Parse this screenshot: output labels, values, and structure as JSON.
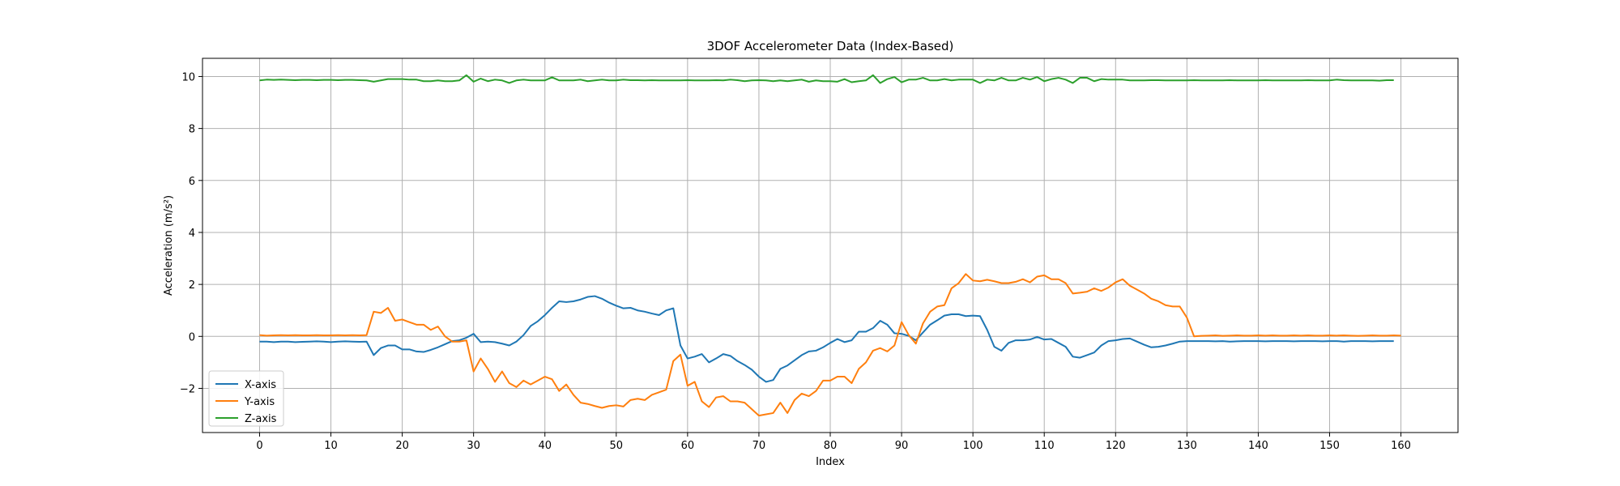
{
  "chart_data": {
    "type": "line",
    "title": "3DOF Accelerometer Data (Index-Based)",
    "xlabel": "Index",
    "ylabel": "Acceleration (m/s²)",
    "xlim": [
      -8,
      168
    ],
    "ylim": [
      -3.7,
      10.7
    ],
    "xticks": [
      0,
      10,
      20,
      30,
      40,
      50,
      60,
      70,
      80,
      90,
      100,
      110,
      120,
      130,
      140,
      150,
      160
    ],
    "yticks": [
      -2,
      0,
      2,
      4,
      6,
      8,
      10
    ],
    "grid": true,
    "legend_position": "lower-left",
    "x_start": 0,
    "x_step": 1,
    "series": [
      {
        "name": "X-axis",
        "color": "#1f77b4",
        "values": [
          -0.2,
          -0.2,
          -0.22,
          -0.2,
          -0.2,
          -0.22,
          -0.21,
          -0.2,
          -0.19,
          -0.2,
          -0.22,
          -0.2,
          -0.19,
          -0.2,
          -0.21,
          -0.2,
          -0.72,
          -0.45,
          -0.35,
          -0.35,
          -0.5,
          -0.5,
          -0.58,
          -0.6,
          -0.52,
          -0.42,
          -0.3,
          -0.18,
          -0.15,
          -0.05,
          0.1,
          -0.22,
          -0.2,
          -0.22,
          -0.28,
          -0.35,
          -0.2,
          0.05,
          0.4,
          0.58,
          0.82,
          1.1,
          1.35,
          1.32,
          1.35,
          1.42,
          1.52,
          1.55,
          1.45,
          1.3,
          1.18,
          1.08,
          1.1,
          1.0,
          0.95,
          0.88,
          0.82,
          1.0,
          1.08,
          -0.35,
          -0.85,
          -0.78,
          -0.68,
          -1.0,
          -0.85,
          -0.68,
          -0.75,
          -0.95,
          -1.1,
          -1.28,
          -1.55,
          -1.75,
          -1.68,
          -1.25,
          -1.12,
          -0.92,
          -0.72,
          -0.58,
          -0.55,
          -0.42,
          -0.25,
          -0.1,
          -0.22,
          -0.15,
          0.18,
          0.18,
          0.32,
          0.6,
          0.45,
          0.12,
          0.1,
          0.02,
          -0.15,
          0.15,
          0.45,
          0.62,
          0.8,
          0.85,
          0.85,
          0.78,
          0.8,
          0.78,
          0.25,
          -0.4,
          -0.55,
          -0.25,
          -0.15,
          -0.15,
          -0.12,
          -0.02,
          -0.12,
          -0.1,
          -0.25,
          -0.4,
          -0.78,
          -0.82,
          -0.72,
          -0.62,
          -0.35,
          -0.18,
          -0.15,
          -0.1,
          -0.08,
          -0.2,
          -0.32,
          -0.42,
          -0.4,
          -0.35,
          -0.28,
          -0.2,
          -0.18,
          -0.18,
          -0.18,
          -0.18,
          -0.19,
          -0.18,
          -0.2,
          -0.19,
          -0.18,
          -0.18,
          -0.18,
          -0.19,
          -0.18,
          -0.18,
          -0.18,
          -0.19,
          -0.18,
          -0.18,
          -0.18,
          -0.19,
          -0.18,
          -0.18,
          -0.2,
          -0.18,
          -0.18,
          -0.18,
          -0.19,
          -0.18,
          -0.18,
          -0.18
        ]
      },
      {
        "name": "Y-axis",
        "color": "#ff7f0e",
        "values": [
          0.05,
          0.03,
          0.04,
          0.05,
          0.04,
          0.05,
          0.04,
          0.04,
          0.05,
          0.04,
          0.04,
          0.05,
          0.04,
          0.05,
          0.04,
          0.05,
          0.95,
          0.9,
          1.1,
          0.6,
          0.65,
          0.55,
          0.45,
          0.45,
          0.25,
          0.38,
          0.0,
          -0.2,
          -0.2,
          -0.15,
          -1.35,
          -0.85,
          -1.25,
          -1.75,
          -1.35,
          -1.8,
          -1.95,
          -1.7,
          -1.85,
          -1.7,
          -1.55,
          -1.65,
          -2.1,
          -1.85,
          -2.25,
          -2.55,
          -2.6,
          -2.68,
          -2.75,
          -2.68,
          -2.65,
          -2.7,
          -2.45,
          -2.4,
          -2.45,
          -2.25,
          -2.15,
          -2.05,
          -0.95,
          -0.7,
          -1.9,
          -1.75,
          -2.5,
          -2.72,
          -2.35,
          -2.3,
          -2.5,
          -2.5,
          -2.55,
          -2.8,
          -3.05,
          -3.0,
          -2.95,
          -2.55,
          -2.95,
          -2.45,
          -2.2,
          -2.3,
          -2.1,
          -1.7,
          -1.7,
          -1.55,
          -1.55,
          -1.8,
          -1.25,
          -1.0,
          -0.55,
          -0.45,
          -0.58,
          -0.35,
          0.55,
          0.05,
          -0.28,
          0.5,
          0.95,
          1.15,
          1.2,
          1.85,
          2.05,
          2.4,
          2.15,
          2.12,
          2.18,
          2.12,
          2.05,
          2.05,
          2.1,
          2.2,
          2.08,
          2.3,
          2.35,
          2.2,
          2.2,
          2.05,
          1.65,
          1.68,
          1.72,
          1.85,
          1.75,
          1.88,
          2.08,
          2.2,
          1.95,
          1.8,
          1.65,
          1.45,
          1.35,
          1.2,
          1.15,
          1.15,
          0.72,
          0.0,
          0.02,
          0.03,
          0.04,
          0.02,
          0.03,
          0.04,
          0.03,
          0.03,
          0.04,
          0.03,
          0.04,
          0.03,
          0.03,
          0.04,
          0.03,
          0.04,
          0.03,
          0.03,
          0.04,
          0.03,
          0.04,
          0.03,
          0.02,
          0.03,
          0.04,
          0.03,
          0.03,
          0.04,
          0.03
        ]
      },
      {
        "name": "Z-axis",
        "color": "#2ca02c",
        "values": [
          9.85,
          9.88,
          9.87,
          9.88,
          9.87,
          9.86,
          9.87,
          9.87,
          9.86,
          9.87,
          9.87,
          9.86,
          9.87,
          9.87,
          9.86,
          9.85,
          9.8,
          9.85,
          9.9,
          9.9,
          9.9,
          9.88,
          9.88,
          9.82,
          9.82,
          9.85,
          9.82,
          9.82,
          9.85,
          10.05,
          9.8,
          9.92,
          9.82,
          9.88,
          9.85,
          9.75,
          9.85,
          9.88,
          9.85,
          9.85,
          9.85,
          9.97,
          9.85,
          9.85,
          9.85,
          9.88,
          9.82,
          9.85,
          9.88,
          9.85,
          9.85,
          9.88,
          9.86,
          9.86,
          9.85,
          9.86,
          9.85,
          9.85,
          9.85,
          9.85,
          9.86,
          9.85,
          9.85,
          9.85,
          9.86,
          9.85,
          9.88,
          9.86,
          9.82,
          9.85,
          9.86,
          9.85,
          9.82,
          9.85,
          9.82,
          9.85,
          9.88,
          9.8,
          9.85,
          9.82,
          9.82,
          9.8,
          9.9,
          9.78,
          9.82,
          9.85,
          10.05,
          9.75,
          9.9,
          9.98,
          9.78,
          9.88,
          9.88,
          9.95,
          9.85,
          9.85,
          9.9,
          9.85,
          9.88,
          9.88,
          9.88,
          9.75,
          9.88,
          9.85,
          9.95,
          9.85,
          9.85,
          9.95,
          9.88,
          9.98,
          9.82,
          9.9,
          9.95,
          9.88,
          9.75,
          9.95,
          9.95,
          9.82,
          9.9,
          9.88,
          9.88,
          9.88,
          9.85,
          9.85,
          9.85,
          9.86,
          9.86,
          9.85,
          9.85,
          9.85,
          9.85,
          9.86,
          9.85,
          9.85,
          9.85,
          9.85,
          9.86,
          9.85,
          9.85,
          9.85,
          9.85,
          9.86,
          9.85,
          9.85,
          9.85,
          9.85,
          9.85,
          9.86,
          9.85,
          9.85,
          9.85,
          9.88,
          9.86,
          9.85,
          9.85,
          9.85,
          9.85,
          9.84,
          9.86,
          9.86
        ]
      }
    ]
  }
}
